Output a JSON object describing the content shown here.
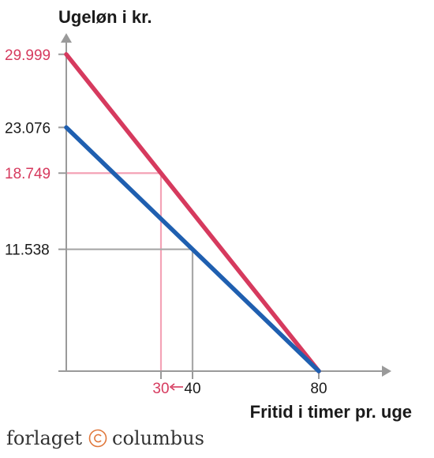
{
  "chart_data": {
    "type": "line",
    "ylabel": "Ugeløn i kr.",
    "xlabel": "Fritid i timer pr. uge",
    "xlim": [
      0,
      100
    ],
    "ylim": [
      0,
      32000
    ],
    "series": [
      {
        "points": [
          [
            0,
            29999
          ],
          [
            80,
            0
          ]
        ],
        "color": "#d63a5e"
      },
      {
        "points": [
          [
            0,
            23076
          ],
          [
            80,
            0
          ]
        ],
        "color": "#1f5fb0"
      }
    ],
    "guides": [
      {
        "x": 30,
        "y": 18749,
        "color": "#f4a3b6"
      },
      {
        "x": 40,
        "y": 11538,
        "color": "#a8a8a8"
      }
    ],
    "y_ticks": [
      {
        "value": 29999,
        "label": "29.999",
        "color": "#d63a5e"
      },
      {
        "value": 23076,
        "label": "23.076",
        "color": "#1a1a1a"
      },
      {
        "value": 18749,
        "label": "18.749",
        "color": "#d63a5e"
      },
      {
        "value": 11538,
        "label": "11.538",
        "color": "#1a1a1a"
      }
    ],
    "x_ticks": [
      {
        "value": 30,
        "label": "30",
        "color": "#d63a5e"
      },
      {
        "value": 40,
        "label": "40",
        "color": "#1a1a1a"
      },
      {
        "value": 80,
        "label": "80",
        "color": "#1a1a1a"
      }
    ],
    "annotations": [
      {
        "type": "arrow",
        "from_x": 40,
        "to_x": 30,
        "color": "#d63a5e"
      }
    ],
    "grid": false,
    "axis_color": "#9a9a9a"
  },
  "publisher": {
    "left_word": "forlaget",
    "right_word": "columbus",
    "icon": "copyright-circle-icon",
    "color": "#333333"
  }
}
